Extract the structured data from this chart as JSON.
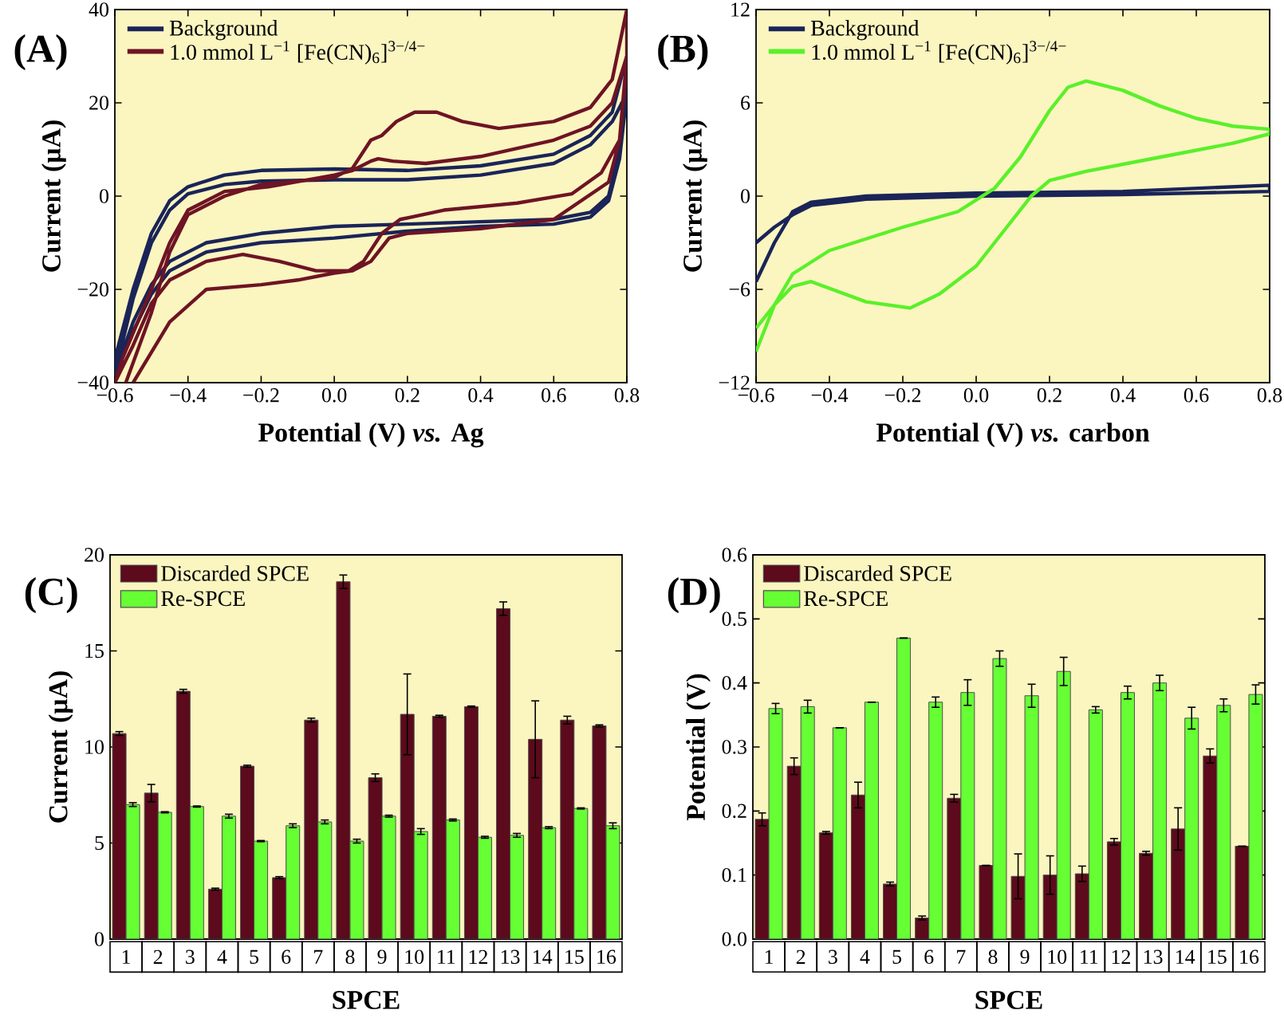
{
  "chart_data": [
    {
      "type": "line",
      "title": "(A)",
      "xlabel": "Potential (V) *vs.* Ag",
      "ylabel": "Current (μA)",
      "xlim": [
        -0.6,
        0.8
      ],
      "ylim": [
        -40,
        40
      ],
      "xticks": [
        {
          "value": -0.6,
          "label": "−0.6"
        },
        {
          "value": -0.4,
          "label": "−0.4"
        },
        {
          "value": -0.2,
          "label": "−0.2"
        },
        {
          "value": 0,
          "label": "0.0"
        },
        {
          "value": 0.2,
          "label": "0.2"
        },
        {
          "value": 0.4,
          "label": "0.4"
        },
        {
          "value": 0.6,
          "label": "0.6"
        },
        {
          "value": 0.8,
          "label": "0.8"
        }
      ],
      "yticks": [
        {
          "value": -40,
          "label": "−40"
        },
        {
          "value": -20,
          "label": "−20"
        },
        0,
        20,
        40
      ],
      "legend": "top left",
      "series": [
        {
          "name": "Background",
          "color": "#1a2458",
          "x": [
            -0.6,
            -0.55,
            -0.5,
            -0.45,
            -0.4,
            -0.3,
            -0.2,
            0,
            0.2,
            0.4,
            0.6,
            0.7,
            0.76,
            0.8,
            0.8,
            0.78,
            0.75,
            0.7,
            0.6,
            0.4,
            0.2,
            0,
            -0.2,
            -0.35,
            -0.45,
            -0.5,
            -0.55,
            -0.6,
            -0.55,
            -0.5,
            -0.45,
            -0.4,
            -0.3,
            -0.2,
            0,
            0.2,
            0.4,
            0.6,
            0.7,
            0.76,
            0.8,
            0.78,
            0.75,
            0.7,
            0.6,
            0.4,
            0.2,
            0,
            -0.2,
            -0.35,
            -0.45,
            -0.5,
            -0.55,
            -0.6
          ],
          "values": [
            -35,
            -20,
            -8,
            -1,
            2,
            4.5,
            5.5,
            5.8,
            5.5,
            6.5,
            9,
            13,
            18,
            30,
            25,
            10,
            0,
            -3.5,
            -5,
            -5.5,
            -6,
            -6.5,
            -8,
            -10,
            -14,
            -19,
            -27,
            -38,
            -22,
            -10,
            -3,
            0.5,
            2.5,
            3.2,
            3.5,
            3.5,
            4.5,
            7,
            11,
            16,
            22,
            8,
            -1,
            -4.5,
            -6,
            -6.5,
            -7.5,
            -9,
            -10,
            -12,
            -16,
            -21,
            -29,
            -36
          ]
        },
        {
          "name": "1.0 mmol L$^{−1}$ [Fe(CN)$_{6}$]$^{3−/4−}$",
          "color": "#6e1424",
          "x": [
            -0.57,
            -0.5,
            -0.45,
            -0.4,
            -0.3,
            -0.2,
            0,
            0.05,
            0.1,
            0.13,
            0.17,
            0.22,
            0.28,
            0.35,
            0.45,
            0.6,
            0.7,
            0.76,
            0.8,
            0.8,
            0.78,
            0.73,
            0.65,
            0.5,
            0.3,
            0.18,
            0.13,
            0.08,
            0.04,
            -0.05,
            -0.15,
            -0.25,
            -0.35,
            -0.45,
            -0.5,
            -0.55,
            -0.6,
            -0.58,
            -0.5,
            -0.45,
            -0.4,
            -0.3,
            -0.18,
            0,
            0.05,
            0.1,
            0.12,
            0.16,
            0.25,
            0.4,
            0.6,
            0.7,
            0.76,
            0.8,
            0.78,
            0.75,
            0.6,
            0.4,
            0.2,
            0.15,
            0.1,
            0.05,
            0,
            -0.1,
            -0.2,
            -0.35,
            -0.45,
            -0.55
          ],
          "values": [
            -40,
            -25,
            -12,
            -4,
            0,
            2.5,
            4,
            6,
            12,
            13,
            16,
            18,
            18,
            16,
            14.5,
            16,
            19,
            25,
            40,
            28,
            12,
            5,
            0.5,
            -1.5,
            -3,
            -5,
            -8,
            -14,
            -16,
            -16,
            -14,
            -12.5,
            -14,
            -18,
            -23,
            -32,
            -40,
            -35,
            -20,
            -10,
            -3,
            1,
            2,
            4.5,
            5.5,
            7.5,
            8,
            7.5,
            7,
            8.5,
            12,
            15,
            20,
            30,
            12,
            3,
            -5,
            -7,
            -8,
            -9,
            -14,
            -16,
            -16.5,
            -18,
            -19,
            -20,
            -27,
            -40
          ]
        }
      ]
    },
    {
      "type": "line",
      "title": "(B)",
      "xlabel": "Potential (V) *vs.* carbon",
      "ylabel": "Current (μA)",
      "xlim": [
        -0.6,
        0.8
      ],
      "ylim": [
        -12,
        12
      ],
      "xticks": [
        {
          "value": -0.6,
          "label": "−0.6"
        },
        {
          "value": -0.4,
          "label": "−0.4"
        },
        {
          "value": -0.2,
          "label": "−0.2"
        },
        {
          "value": 0,
          "label": "0.0"
        },
        {
          "value": 0.2,
          "label": "0.2"
        },
        {
          "value": 0.4,
          "label": "0.4"
        },
        {
          "value": 0.6,
          "label": "0.6"
        },
        {
          "value": 0.8,
          "label": "0.8"
        }
      ],
      "yticks": [
        {
          "value": -12,
          "label": "−12"
        },
        {
          "value": -6,
          "label": "−6"
        },
        0,
        6,
        12
      ],
      "legend": "top left",
      "series": [
        {
          "name": "Background",
          "color": "#1a2458",
          "x": [
            -0.6,
            -0.55,
            -0.5,
            -0.45,
            -0.3,
            0,
            0.4,
            0.8,
            0.8,
            0.4,
            0,
            -0.3,
            -0.45,
            -0.5,
            -0.55,
            -0.6
          ],
          "values": [
            -5.5,
            -3,
            -1,
            -0.4,
            0,
            0.2,
            0.3,
            0.7,
            0.3,
            0.1,
            0,
            -0.2,
            -0.6,
            -1.2,
            -2,
            -3
          ]
        },
        {
          "name": "1.0 mmol L$^{−1}$ [Fe(CN)$_{6}$]$^{3−/4−}$",
          "color": "#5af02a",
          "x": [
            -0.6,
            -0.55,
            -0.5,
            -0.4,
            -0.2,
            -0.05,
            0.05,
            0.12,
            0.2,
            0.25,
            0.3,
            0.4,
            0.5,
            0.6,
            0.7,
            0.8,
            0.8,
            0.7,
            0.5,
            0.3,
            0.2,
            0.15,
            0.1,
            0.05,
            0,
            -0.1,
            -0.18,
            -0.3,
            -0.45,
            -0.5,
            -0.55,
            -0.6
          ],
          "values": [
            -10,
            -7,
            -5,
            -3.5,
            -2,
            -1,
            0.5,
            2.5,
            5.5,
            7,
            7.4,
            6.8,
            5.8,
            5,
            4.5,
            4.3,
            4,
            3.4,
            2.5,
            1.6,
            1,
            0,
            -1.5,
            -3,
            -4.5,
            -6.3,
            -7.2,
            -6.8,
            -5.5,
            -5.8,
            -7,
            -8.5
          ]
        }
      ]
    },
    {
      "type": "bar",
      "title": "(C)",
      "xlabel": "SPCE",
      "ylabel": "Current (μA)",
      "categories": [
        "1",
        "2",
        "3",
        "4",
        "5",
        "6",
        "7",
        "8",
        "9",
        "10",
        "11",
        "12",
        "13",
        "14",
        "15",
        "16"
      ],
      "ylim": [
        0,
        20
      ],
      "yticks": [
        0,
        5,
        10,
        15,
        20
      ],
      "legend": "top left",
      "series": [
        {
          "name": "Discarded SPCE",
          "color": "#5c0a1c",
          "values": [
            10.7,
            7.6,
            12.9,
            2.6,
            9.0,
            3.2,
            11.4,
            18.6,
            8.4,
            11.7,
            11.6,
            12.1,
            17.2,
            10.4,
            11.4,
            11.1
          ],
          "errors": [
            0.1,
            0.45,
            0.1,
            0.05,
            0.05,
            0.05,
            0.1,
            0.35,
            0.2,
            2.1,
            0.05,
            0.03,
            0.35,
            2.0,
            0.2,
            0.05
          ]
        },
        {
          "name": "Re-SPCE",
          "color": "#66ff33",
          "values": [
            7.0,
            6.6,
            6.9,
            6.4,
            5.1,
            5.9,
            6.1,
            5.1,
            6.4,
            5.6,
            6.2,
            5.3,
            5.4,
            5.8,
            6.8,
            5.9
          ],
          "errors": [
            0.1,
            0.03,
            0.03,
            0.1,
            0.03,
            0.1,
            0.1,
            0.1,
            0.05,
            0.15,
            0.05,
            0.05,
            0.1,
            0.05,
            0.03,
            0.15
          ]
        }
      ]
    },
    {
      "type": "bar",
      "title": "(D)",
      "xlabel": "SPCE",
      "ylabel": "Potential (V)",
      "categories": [
        "1",
        "2",
        "3",
        "4",
        "5",
        "6",
        "7",
        "8",
        "9",
        "10",
        "11",
        "12",
        "13",
        "14",
        "15",
        "16"
      ],
      "ylim": [
        0,
        0.6
      ],
      "yticks": [
        {
          "value": 0,
          "label": "0.0"
        },
        0.1,
        0.2,
        0.3,
        0.4,
        0.5,
        0.6
      ],
      "legend": "top left",
      "series": [
        {
          "name": "Discarded SPCE",
          "color": "#5c0a1c",
          "values": [
            0.187,
            0.27,
            0.166,
            0.225,
            0.086,
            0.033,
            0.22,
            0.115,
            0.098,
            0.1,
            0.102,
            0.152,
            0.134,
            0.172,
            0.286,
            0.145
          ],
          "errors": [
            0.01,
            0.013,
            0.002,
            0.02,
            0.003,
            0.003,
            0.006,
            null,
            0.035,
            0.03,
            0.012,
            0.005,
            0.003,
            0.033,
            0.011,
            null
          ]
        },
        {
          "name": "Re-SPCE",
          "color": "#66ff33",
          "values": [
            0.36,
            0.363,
            0.33,
            0.37,
            0.47,
            0.37,
            0.385,
            0.438,
            0.38,
            0.418,
            0.358,
            0.385,
            0.4,
            0.345,
            0.365,
            0.382
          ],
          "errors": [
            0.008,
            0.01,
            null,
            null,
            null,
            0.008,
            0.02,
            0.012,
            0.018,
            0.022,
            0.005,
            0.01,
            0.012,
            0.017,
            0.01,
            0.015
          ]
        }
      ]
    }
  ]
}
